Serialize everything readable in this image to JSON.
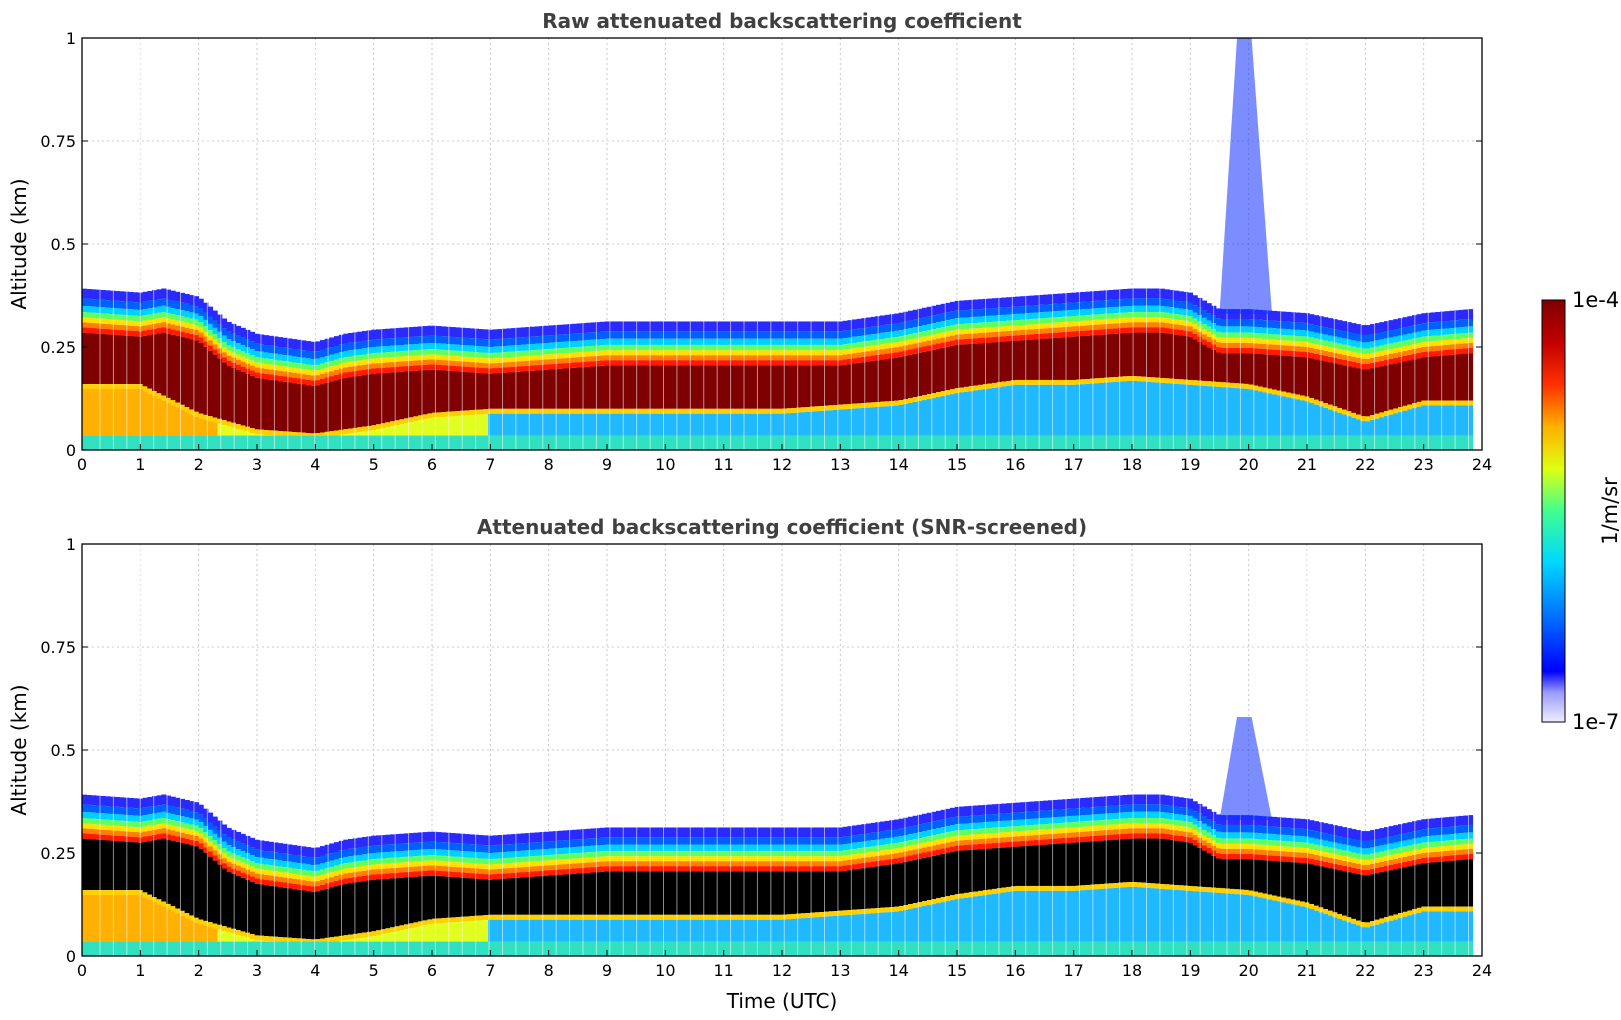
{
  "chart_data": [
    {
      "type": "heatmap",
      "title": "Raw attenuated backscattering coefficient",
      "xlabel": "",
      "ylabel": "Altitude (km)",
      "xlim": [
        0,
        24
      ],
      "ylim": [
        0,
        1
      ],
      "xticks": [
        "0",
        "1",
        "2",
        "3",
        "4",
        "5",
        "6",
        "7",
        "8",
        "9",
        "10",
        "11",
        "12",
        "13",
        "14",
        "15",
        "16",
        "17",
        "18",
        "19",
        "20",
        "21",
        "22",
        "23",
        "24"
      ],
      "yticks": [
        "0",
        "0.25",
        "0.5",
        "0.75",
        "1"
      ],
      "grid": true,
      "saturated_color": "#7f0000",
      "layer_top_km": {
        "time_utc": [
          0,
          1,
          1.4,
          2,
          2.5,
          3,
          3.5,
          4,
          4.5,
          5,
          6,
          7,
          9,
          10,
          11,
          12,
          13,
          14,
          15,
          16,
          17,
          18,
          18.5,
          19,
          19.5,
          20,
          21,
          22,
          23,
          23.8
        ],
        "altitude_km": [
          0.38,
          0.37,
          0.38,
          0.36,
          0.3,
          0.27,
          0.26,
          0.25,
          0.27,
          0.28,
          0.29,
          0.28,
          0.3,
          0.3,
          0.3,
          0.3,
          0.3,
          0.32,
          0.35,
          0.36,
          0.37,
          0.38,
          0.38,
          0.37,
          0.33,
          0.33,
          0.32,
          0.29,
          0.32,
          0.33
        ]
      },
      "layer_base_km": {
        "time_utc": [
          0,
          1,
          2,
          3,
          4,
          5,
          6,
          7,
          9,
          10,
          11,
          12,
          13,
          14,
          15,
          16,
          17,
          18,
          19,
          20,
          21,
          22,
          23,
          23.8
        ],
        "altitude_km": [
          0.16,
          0.16,
          0.09,
          0.05,
          0.04,
          0.06,
          0.09,
          0.1,
          0.1,
          0.1,
          0.1,
          0.1,
          0.11,
          0.12,
          0.15,
          0.17,
          0.17,
          0.18,
          0.17,
          0.16,
          0.13,
          0.08,
          0.12,
          0.12
        ]
      },
      "plume_time_utc": 19.9,
      "plume_top_km": 1.0
    },
    {
      "type": "heatmap",
      "title": "Attenuated backscattering coefficient (SNR-screened)",
      "xlabel": "Time (UTC)",
      "ylabel": "Altitude (km)",
      "xlim": [
        0,
        24
      ],
      "ylim": [
        0,
        1
      ],
      "xticks": [
        "0",
        "1",
        "2",
        "3",
        "4",
        "5",
        "6",
        "7",
        "8",
        "9",
        "10",
        "11",
        "12",
        "13",
        "14",
        "15",
        "16",
        "17",
        "18",
        "19",
        "20",
        "21",
        "22",
        "23",
        "24"
      ],
      "yticks": [
        "0",
        "0.25",
        "0.5",
        "0.75",
        "1"
      ],
      "grid": true,
      "saturated_color": "#000000",
      "layer_top_km": {
        "time_utc": [
          0,
          1,
          1.4,
          2,
          2.5,
          3,
          3.5,
          4,
          4.5,
          5,
          6,
          7,
          9,
          10,
          11,
          12,
          13,
          14,
          15,
          16,
          17,
          18,
          18.5,
          19,
          19.5,
          20,
          21,
          22,
          23,
          23.8
        ],
        "altitude_km": [
          0.38,
          0.37,
          0.38,
          0.36,
          0.3,
          0.27,
          0.26,
          0.25,
          0.27,
          0.28,
          0.29,
          0.28,
          0.3,
          0.3,
          0.3,
          0.3,
          0.3,
          0.32,
          0.35,
          0.36,
          0.37,
          0.38,
          0.38,
          0.37,
          0.33,
          0.33,
          0.32,
          0.29,
          0.32,
          0.33
        ]
      },
      "layer_base_km": {
        "time_utc": [
          0,
          1,
          2,
          3,
          4,
          5,
          6,
          7,
          9,
          10,
          11,
          12,
          13,
          14,
          15,
          16,
          17,
          18,
          19,
          20,
          21,
          22,
          23,
          23.8
        ],
        "altitude_km": [
          0.16,
          0.16,
          0.09,
          0.05,
          0.04,
          0.06,
          0.09,
          0.1,
          0.1,
          0.1,
          0.1,
          0.1,
          0.11,
          0.12,
          0.15,
          0.17,
          0.17,
          0.18,
          0.17,
          0.16,
          0.13,
          0.08,
          0.12,
          0.12
        ]
      },
      "plume_time_utc": 19.9,
      "plume_top_km": 0.58
    }
  ],
  "colorbar": {
    "label": "1/m/sr",
    "max_label": "1e-4",
    "min_label": "1e-7",
    "colors": [
      "#eeeeff",
      "#8888ff",
      "#0000ff",
      "#0080ff",
      "#00e0ff",
      "#40ff90",
      "#ffff00",
      "#ff8000",
      "#ff0000",
      "#7f0000"
    ]
  }
}
